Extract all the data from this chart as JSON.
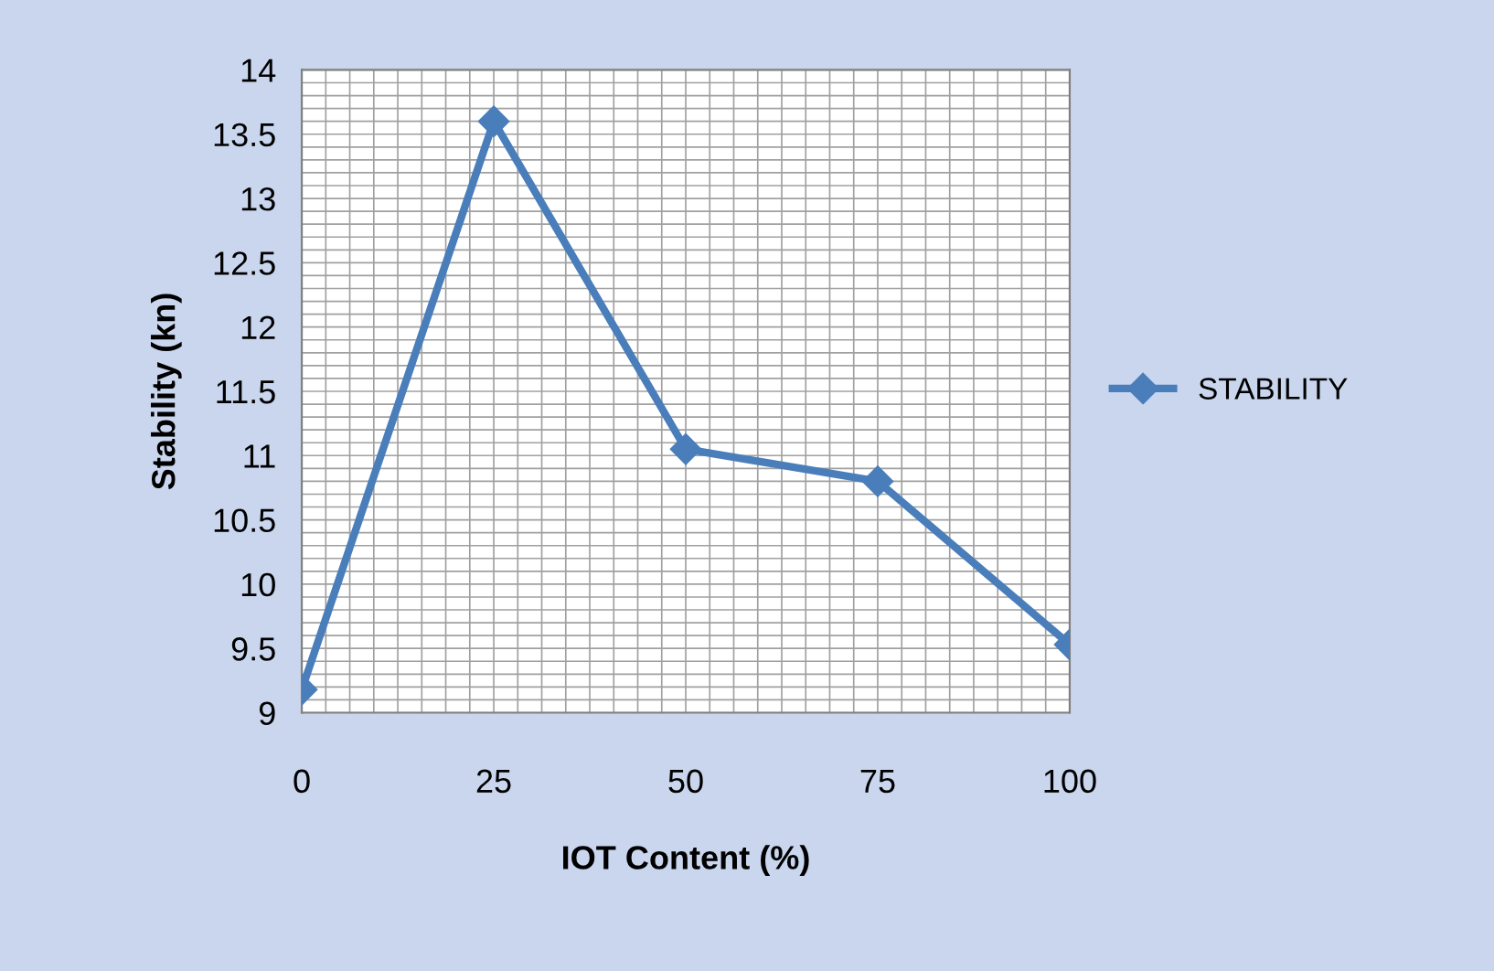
{
  "chart_data": {
    "type": "line",
    "xlabel": "IOT Content (%)",
    "ylabel": "Stability (kn)",
    "categories": [
      "0",
      "25",
      "50",
      "75",
      "100"
    ],
    "series": [
      {
        "name": "STABILITY",
        "color": "#4a7ebb",
        "values": [
          9.18,
          13.6,
          11.05,
          10.8,
          9.53
        ]
      }
    ],
    "ylim": [
      9,
      14
    ],
    "yticks": [
      9,
      9.5,
      10,
      10.5,
      11,
      11.5,
      12,
      12.5,
      13,
      13.5,
      14
    ],
    "grid": true,
    "legend": "right",
    "marker": "diamond",
    "line_style": "solid"
  }
}
